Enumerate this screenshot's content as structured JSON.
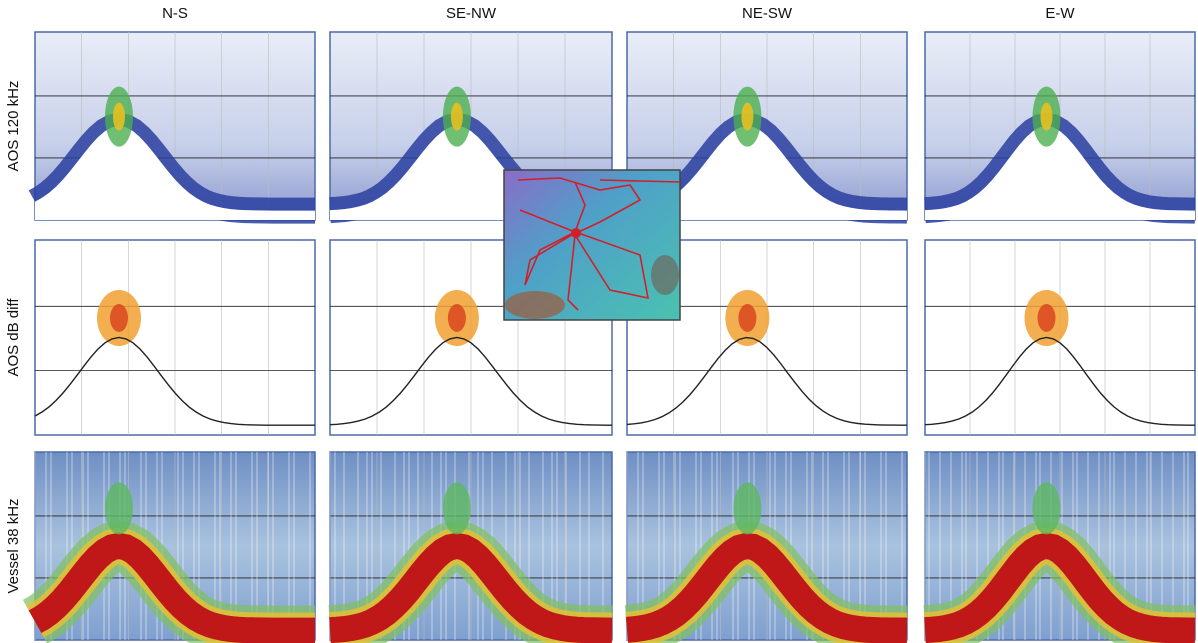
{
  "columns": [
    "N-S",
    "SE-NW",
    "NE-SW",
    "E-W"
  ],
  "rows": [
    "AOS 120 kHz",
    "AOS dB diff",
    "Vessel 38 kHz"
  ]
}
